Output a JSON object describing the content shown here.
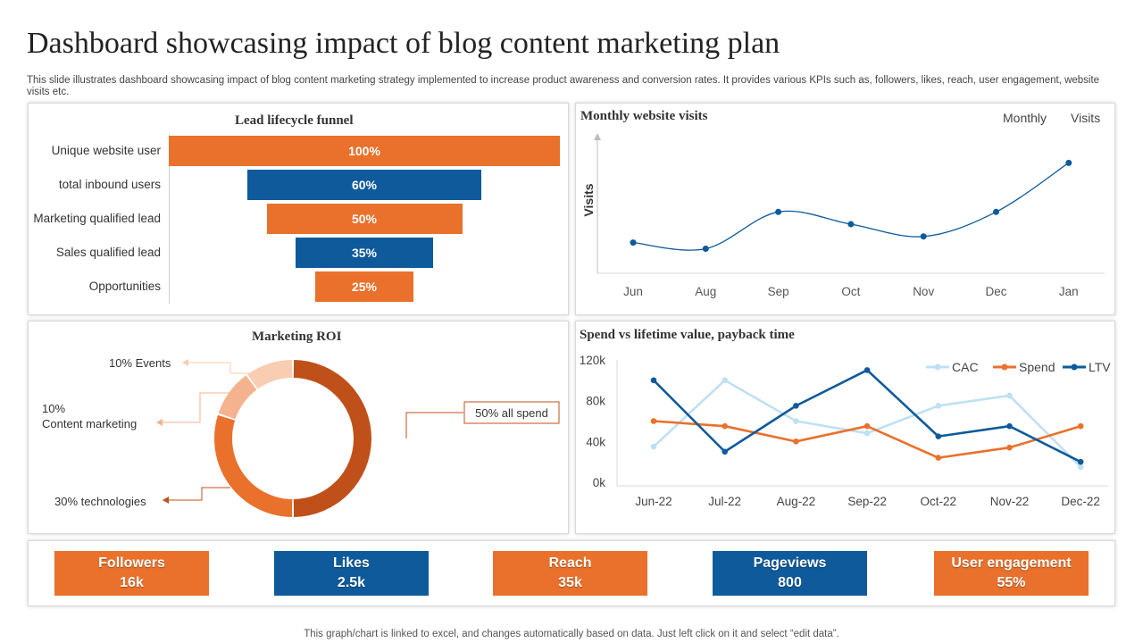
{
  "header": {
    "title": "Dashboard showcasing impact of blog content marketing plan",
    "description": "This slide illustrates dashboard showcasing impact of blog content marketing strategy implemented to increase product awareness and conversion rates. It provides various KPIs such as, followers, likes, reach, user engagement, website visits etc."
  },
  "colors": {
    "orange": "#E9712C",
    "blue": "#0E5A9B",
    "dark_orange": "#C0501A",
    "light_orange": "#F4B38E",
    "pale_orange": "#F8CDB2",
    "cac": "#BFE0F4"
  },
  "kpis": [
    {
      "label": "Followers",
      "value": "16k",
      "color": "#E9712C"
    },
    {
      "label": "Likes",
      "value": "2.5k",
      "color": "#0E5A9B"
    },
    {
      "label": "Reach",
      "value": "35k",
      "color": "#E9712C"
    },
    {
      "label": "Pageviews",
      "value": "800",
      "color": "#0E5A9B"
    },
    {
      "label": "User engagement",
      "value": "55%",
      "color": "#E9712C"
    }
  ],
  "footer": "This graph/chart is linked to excel, and changes automatically based on data. Just left click on it and select “edit data”.",
  "chart_data": [
    {
      "type": "bar",
      "orientation": "horizontal-funnel",
      "title": "Lead lifecycle funnel",
      "categories": [
        "Unique website user",
        "total inbound users",
        "Marketing qualified lead",
        "Sales qualified lead",
        "Opportunities"
      ],
      "values": [
        100,
        60,
        50,
        35,
        25
      ],
      "labels": [
        "100%",
        "60%",
        "50%",
        "35%",
        "25%"
      ],
      "colors": [
        "#E9712C",
        "#0E5A9B",
        "#E9712C",
        "#0E5A9B",
        "#E9712C"
      ]
    },
    {
      "type": "line",
      "title": "Monthly website visits",
      "legend": [
        "Monthly",
        "Visits"
      ],
      "ylabel": "Visits",
      "x": [
        "Jun",
        "Aug",
        "Sep",
        "Oct",
        "Nov",
        "Dec",
        "Jan"
      ],
      "values": [
        25,
        20,
        50,
        40,
        30,
        50,
        90
      ],
      "ylim": [
        0,
        115
      ],
      "color": "#0E5A9B"
    },
    {
      "type": "pie",
      "variant": "donut",
      "title": "Marketing ROI",
      "slices": [
        {
          "label": "50% all spend",
          "value": 50,
          "color": "#C0501A"
        },
        {
          "label": "30% technologies",
          "value": 30,
          "color": "#E9712C"
        },
        {
          "label_line1": "10%",
          "label_line2": "Content marketing",
          "value": 10,
          "color": "#F4B38E"
        },
        {
          "label": "10% Events",
          "value": 10,
          "color": "#F8CDB2"
        }
      ]
    },
    {
      "type": "line",
      "title": "Spend vs lifetime value, payback time",
      "x": [
        "Jun-22",
        "Jul-22",
        "Aug-22",
        "Sep-22",
        "Oct-22",
        "Nov-22",
        "Dec-22"
      ],
      "yticks": [
        "0k",
        "40k",
        "80k",
        "120k"
      ],
      "ylim": [
        0,
        120000
      ],
      "legend_position": "top-right",
      "series": [
        {
          "name": "CAC",
          "values": [
            35000,
            100000,
            60000,
            48000,
            75000,
            85000,
            15000
          ],
          "color": "#BFE0F4"
        },
        {
          "name": "Spend",
          "values": [
            60000,
            55000,
            40000,
            55000,
            24000,
            34000,
            55000
          ],
          "color": "#E9712C"
        },
        {
          "name": "LTV",
          "values": [
            100000,
            30000,
            75000,
            110000,
            45000,
            55000,
            20000
          ],
          "color": "#0E5A9B"
        }
      ]
    }
  ]
}
